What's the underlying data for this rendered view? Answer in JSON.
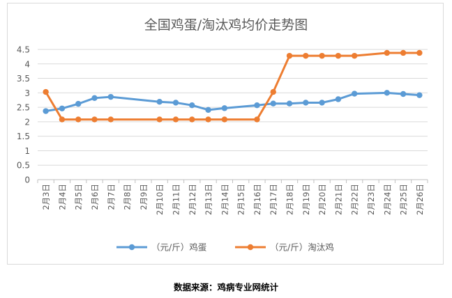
{
  "chart_data": {
    "type": "line",
    "title": "全国鸡蛋/淘汰鸡均价走势图",
    "categories": [
      "2月3日",
      "2月4日",
      "2月5日",
      "2月6日",
      "2月7日",
      "2月8日",
      "2月9日",
      "2月10日",
      "2月11日",
      "2月12日",
      "2月13日",
      "2月14日",
      "2月15日",
      "2月16日",
      "2月17日",
      "2月18日",
      "2月19日",
      "2月20日",
      "2月21日",
      "2月22日",
      "2月23日",
      "2月24日",
      "2月25日",
      "2月26日"
    ],
    "series": [
      {
        "name": "（元/斤）鸡蛋",
        "color": "#5b9bd5",
        "values": [
          2.37,
          2.46,
          2.62,
          2.82,
          2.86,
          null,
          null,
          2.69,
          2.66,
          2.57,
          2.41,
          2.47,
          null,
          2.57,
          2.63,
          2.63,
          2.66,
          2.66,
          2.78,
          2.97,
          null,
          3.0,
          2.96,
          2.92
        ]
      },
      {
        "name": "（元/斤）淘汰鸡",
        "color": "#ed7d31",
        "values": [
          3.03,
          2.08,
          2.08,
          2.08,
          2.08,
          null,
          null,
          2.08,
          2.08,
          2.08,
          2.08,
          2.08,
          null,
          2.08,
          3.03,
          4.28,
          4.28,
          4.28,
          4.28,
          4.28,
          null,
          4.38,
          4.38,
          4.38
        ]
      }
    ],
    "ylim": [
      0,
      4.5
    ],
    "yticks": [
      "0",
      "0.5",
      "1",
      "1.5",
      "2",
      "2.5",
      "3",
      "3.5",
      "4",
      "4.5"
    ],
    "grid": true,
    "legend_position": "bottom"
  },
  "footer": {
    "source": "数据来源：鸡病专业网统计"
  }
}
